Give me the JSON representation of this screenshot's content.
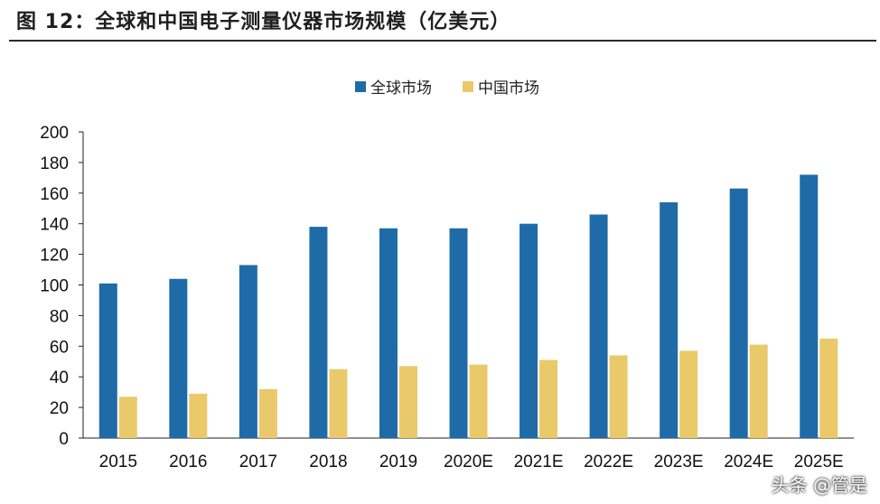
{
  "figure": {
    "title": "图 12：全球和中国电子测量仪器市场规模（亿美元）",
    "watermark": "头条 @管是"
  },
  "chart_data": {
    "type": "bar",
    "categories": [
      "2015",
      "2016",
      "2017",
      "2018",
      "2019",
      "2020E",
      "2021E",
      "2022E",
      "2023E",
      "2024E",
      "2025E"
    ],
    "series": [
      {
        "name": "全球市场",
        "color": "#1f6ba8",
        "values": [
          101,
          104,
          113,
          138,
          137,
          137,
          140,
          146,
          154,
          163,
          172
        ]
      },
      {
        "name": "中国市场",
        "color": "#e9c96a",
        "values": [
          27,
          29,
          32,
          45,
          47,
          48,
          51,
          54,
          57,
          61,
          65
        ]
      }
    ],
    "ylim": [
      0,
      200
    ],
    "yticks": [
      "0",
      "20",
      "40",
      "60",
      "80",
      "100",
      "120",
      "140",
      "160",
      "180",
      "200"
    ],
    "legend_position": "top-center",
    "grid": false
  }
}
